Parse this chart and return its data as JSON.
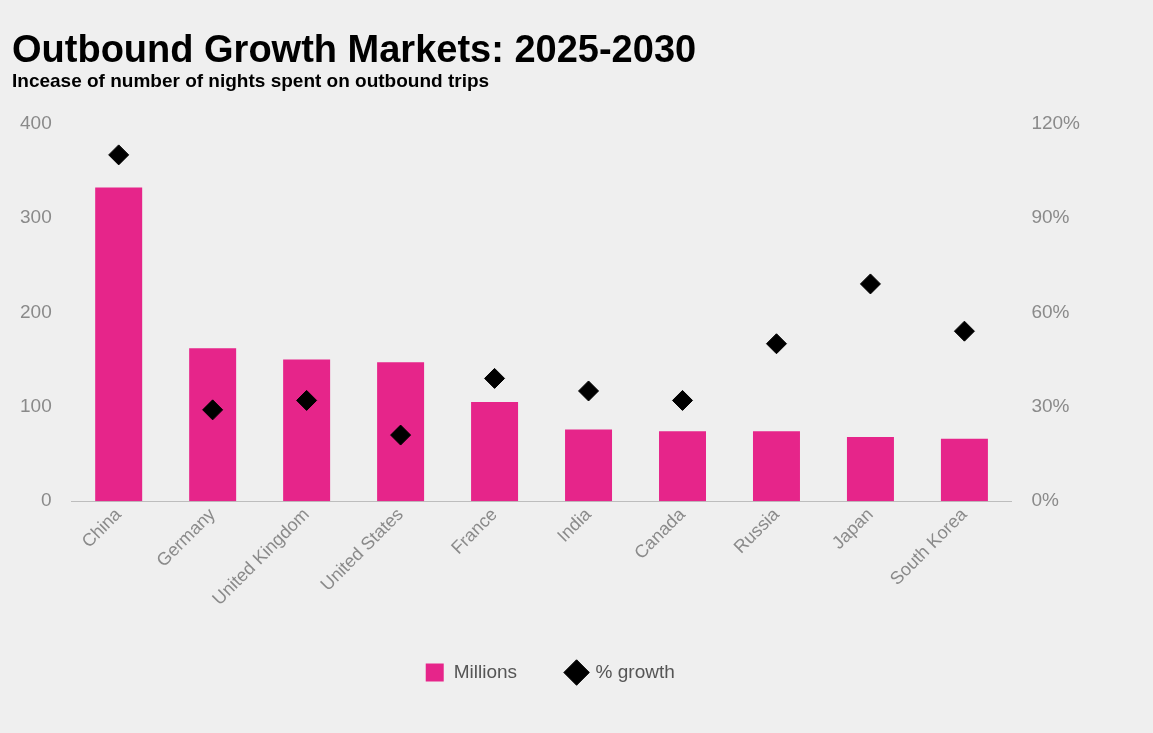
{
  "chart_data": {
    "type": "bar",
    "title": "Outbound Growth Markets: 2025-2030",
    "subtitle": "Incease of number of nights spent on outbound trips",
    "categories": [
      "China",
      "Germany",
      "United Kingdom",
      "United States",
      "France",
      "India",
      "Canada",
      "Russia",
      "Japan",
      "South Korea"
    ],
    "series": [
      {
        "name": "Millions",
        "type": "bar",
        "color": "#e6258a",
        "values": [
          332,
          162,
          150,
          147,
          105,
          76,
          74,
          74,
          68,
          66
        ]
      },
      {
        "name": "% growth",
        "type": "scatter",
        "axis": "y2",
        "color": "#000000",
        "marker": "diamond",
        "x": [
          "China",
          "Germany",
          "United Kingdom",
          "United States",
          "France",
          "India",
          "Canada",
          "Russia",
          "Japan",
          "South Korea"
        ],
        "values": [
          110,
          29,
          32,
          21,
          39,
          35,
          32,
          50,
          69,
          54
        ]
      }
    ],
    "ylim": [
      0,
      400
    ],
    "yticks": [
      0,
      100,
      200,
      300,
      400
    ],
    "y2lim": [
      0,
      120
    ],
    "y2ticks": [
      {
        "value": 0,
        "label": "0%"
      },
      {
        "value": 30,
        "label": "30%"
      },
      {
        "value": 60,
        "label": "60%"
      },
      {
        "value": 90,
        "label": "90%"
      },
      {
        "value": 120,
        "label": "120%"
      }
    ],
    "grid": false,
    "legend": "bottom"
  }
}
